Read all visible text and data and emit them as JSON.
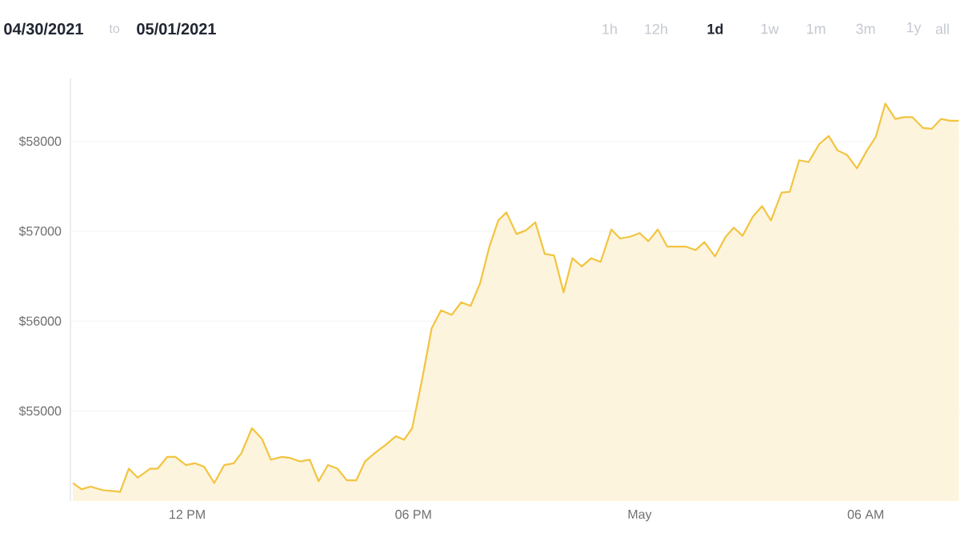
{
  "chart_data": {
    "type": "area",
    "color": "#f2c440",
    "annotations": [
      "04/30/2021",
      "to",
      "05/01/2021",
      "1h",
      "12h",
      "1d",
      "1w",
      "1m",
      "3m",
      "1y",
      "all"
    ],
    "x": [
      "2021-04-30T08:58",
      "2021-04-30T09:12",
      "2021-04-30T09:26",
      "2021-04-30T09:46",
      "2021-04-30T10:03",
      "2021-04-30T10:13",
      "2021-04-30T10:27",
      "2021-04-30T10:41",
      "2021-04-30T11:01",
      "2021-04-30T11:13",
      "2021-04-30T11:28",
      "2021-04-30T11:41",
      "2021-04-30T11:58",
      "2021-04-30T12:12",
      "2021-04-30T12:27",
      "2021-04-30T12:43",
      "2021-04-30T12:59",
      "2021-04-30T13:14",
      "2021-04-30T13:26",
      "2021-04-30T13:43",
      "2021-04-30T13:59",
      "2021-04-30T14:13",
      "2021-04-30T14:30",
      "2021-04-30T14:43",
      "2021-04-30T14:59",
      "2021-04-30T15:15",
      "2021-04-30T15:29",
      "2021-04-30T15:44",
      "2021-04-30T15:59",
      "2021-04-30T16:14",
      "2021-04-30T16:29",
      "2021-04-30T16:43",
      "2021-04-30T16:58",
      "2021-04-30T17:15",
      "2021-04-30T17:32",
      "2021-04-30T17:45",
      "2021-04-30T17:58",
      "2021-04-30T18:14",
      "2021-04-30T18:29",
      "2021-04-30T18:44",
      "2021-04-30T19:01",
      "2021-04-30T19:16",
      "2021-04-30T19:31",
      "2021-04-30T19:46",
      "2021-04-30T20:01",
      "2021-04-30T20:15",
      "2021-04-30T20:28",
      "2021-04-30T20:44",
      "2021-04-30T20:59",
      "2021-04-30T21:14",
      "2021-04-30T21:29",
      "2021-04-30T21:44",
      "2021-04-30T21:59",
      "2021-04-30T22:13",
      "2021-04-30T22:28",
      "2021-04-30T22:43",
      "2021-04-30T22:58",
      "2021-04-30T23:15",
      "2021-04-30T23:29",
      "2021-04-30T23:45",
      "2021-05-01T00:00",
      "2021-05-01T00:14",
      "2021-05-01T00:29",
      "2021-05-01T00:44",
      "2021-05-01T00:58",
      "2021-05-01T01:13",
      "2021-05-01T01:29",
      "2021-05-01T01:43",
      "2021-05-01T02:00",
      "2021-05-01T02:17",
      "2021-05-01T02:30",
      "2021-05-01T02:44",
      "2021-05-01T03:00",
      "2021-05-01T03:15",
      "2021-05-01T03:29",
      "2021-05-01T03:46",
      "2021-05-01T03:59",
      "2021-05-01T04:14",
      "2021-05-01T04:29",
      "2021-05-01T04:46",
      "2021-05-01T05:01",
      "2021-05-01T05:15",
      "2021-05-01T05:30",
      "2021-05-01T05:46",
      "2021-05-01T06:02",
      "2021-05-01T06:16",
      "2021-05-01T06:31",
      "2021-05-01T06:47",
      "2021-05-01T07:01",
      "2021-05-01T07:14",
      "2021-05-01T07:31",
      "2021-05-01T07:45",
      "2021-05-01T08:00",
      "2021-05-01T08:14",
      "2021-05-01T08:28"
    ],
    "values": [
      54200,
      54130,
      54160,
      54120,
      54110,
      54100,
      54360,
      54260,
      54360,
      54360,
      54490,
      54490,
      54400,
      54420,
      54380,
      54200,
      54400,
      54420,
      54530,
      54810,
      54690,
      54460,
      54490,
      54480,
      54440,
      54460,
      54220,
      54400,
      54360,
      54230,
      54230,
      54440,
      54530,
      54620,
      54720,
      54680,
      54810,
      55360,
      55920,
      56120,
      56070,
      56210,
      56170,
      56420,
      56830,
      57120,
      57210,
      56970,
      57010,
      57100,
      56750,
      56730,
      56320,
      56700,
      56610,
      56700,
      56660,
      57020,
      56920,
      56940,
      56980,
      56890,
      57020,
      56830,
      56830,
      56830,
      56790,
      56880,
      56720,
      56940,
      57040,
      56950,
      57160,
      57280,
      57120,
      57430,
      57440,
      57790,
      57770,
      57970,
      58060,
      57900,
      57850,
      57700,
      57900,
      58050,
      58420,
      58250,
      58270,
      58270,
      58150,
      58140,
      58250,
      58230,
      58230
    ],
    "xlim": [
      "2021-04-30T08:54",
      "2021-05-01T08:30"
    ],
    "ylim": [
      54000,
      58700
    ],
    "xticks": [
      {
        "value": "2021-04-30T12:00",
        "label": "12 PM"
      },
      {
        "value": "2021-04-30T18:00",
        "label": "06 PM"
      },
      {
        "value": "2021-05-01T00:00",
        "label": "May"
      },
      {
        "value": "2021-05-01T06:00",
        "label": "06 AM"
      }
    ],
    "yticks": [
      {
        "value": 55000,
        "label": "$55000"
      },
      {
        "value": 56000,
        "label": "$56000"
      },
      {
        "value": 57000,
        "label": "$57000"
      },
      {
        "value": 58000,
        "label": "$58000"
      }
    ],
    "grid": "y"
  }
}
